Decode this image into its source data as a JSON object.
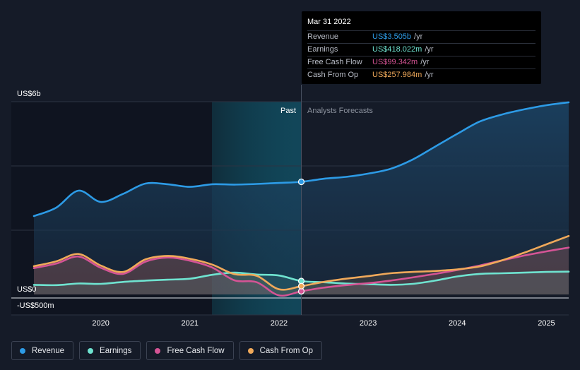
{
  "tooltip": {
    "date": "Mar 31 2022",
    "rows": [
      {
        "label": "Revenue",
        "value": "US$3.505b",
        "unit": "/yr",
        "color": "#2d9be6"
      },
      {
        "label": "Earnings",
        "value": "US$418.022m",
        "unit": "/yr",
        "color": "#6fe3d0"
      },
      {
        "label": "Free Cash Flow",
        "value": "US$99.342m",
        "unit": "/yr",
        "color": "#d55495"
      },
      {
        "label": "Cash From Op",
        "value": "US$257.984m",
        "unit": "/yr",
        "color": "#f0a95a"
      }
    ]
  },
  "legend": [
    {
      "label": "Revenue",
      "color": "#2d9be6"
    },
    {
      "label": "Earnings",
      "color": "#6fe3d0"
    },
    {
      "label": "Free Cash Flow",
      "color": "#d55495"
    },
    {
      "label": "Cash From Op",
      "color": "#f0a95a"
    }
  ],
  "chart_data": {
    "type": "line",
    "title": "",
    "y_top_label": "US$6b",
    "y_zero_label": "US$0",
    "y_bottom_label": "-US$500m",
    "ylim": [
      -500,
      6000
    ],
    "xlim": [
      2019.25,
      2025.25
    ],
    "past_label": "Past",
    "forecast_label": "Analysts Forecasts",
    "forecast_start": 2022.25,
    "highlight_start": 2021.25,
    "x_ticks": [
      "2020",
      "2021",
      "2022",
      "2023",
      "2024",
      "2025"
    ],
    "x_tick_values": [
      2020,
      2021,
      2022,
      2023,
      2024,
      2025
    ],
    "series": [
      {
        "name": "Revenue",
        "color": "#2d9be6",
        "fill": true,
        "marker_at": 2022.25,
        "marker_value": 3505,
        "x": [
          2019.25,
          2019.5,
          2019.75,
          2020.0,
          2020.25,
          2020.5,
          2020.75,
          2021.0,
          2021.25,
          2021.5,
          2021.75,
          2022.0,
          2022.25,
          2022.5,
          2022.75,
          2023.0,
          2023.25,
          2023.5,
          2023.75,
          2024.0,
          2024.25,
          2024.5,
          2024.75,
          2025.0,
          2025.25
        ],
        "values": [
          2440,
          2700,
          3230,
          2880,
          3130,
          3450,
          3430,
          3350,
          3430,
          3420,
          3440,
          3470,
          3505,
          3600,
          3660,
          3760,
          3910,
          4200,
          4600,
          5000,
          5380,
          5600,
          5760,
          5890,
          5980
        ]
      },
      {
        "name": "Earnings",
        "color": "#6fe3d0",
        "marker_at": 2022.25,
        "marker_value": 418,
        "x": [
          2019.25,
          2019.5,
          2019.75,
          2020.0,
          2020.25,
          2020.5,
          2020.75,
          2021.0,
          2021.25,
          2021.5,
          2021.75,
          2022.0,
          2022.25,
          2022.5,
          2022.75,
          2023.0,
          2023.25,
          2023.5,
          2023.75,
          2024.0,
          2024.25,
          2024.5,
          2024.75,
          2025.0,
          2025.25
        ],
        "values": [
          300,
          290,
          340,
          330,
          390,
          430,
          460,
          490,
          610,
          680,
          620,
          590,
          418,
          380,
          340,
          320,
          300,
          330,
          430,
          560,
          640,
          660,
          680,
          700,
          710
        ]
      },
      {
        "name": "Free Cash Flow",
        "color": "#d55495",
        "marker_at": 2022.25,
        "marker_value": 99,
        "x": [
          2019.25,
          2019.5,
          2019.75,
          2020.0,
          2020.25,
          2020.5,
          2020.75,
          2021.0,
          2021.25,
          2021.5,
          2021.75,
          2022.0,
          2022.25,
          2022.5,
          2022.75,
          2023.0,
          2023.25,
          2023.5,
          2023.75,
          2024.0,
          2024.25,
          2024.5,
          2024.75,
          2025.0,
          2025.25
        ],
        "values": [
          820,
          960,
          1180,
          830,
          640,
          1020,
          1150,
          1050,
          840,
          440,
          380,
          -30,
          99,
          210,
          290,
          350,
          430,
          530,
          640,
          760,
          900,
          1060,
          1210,
          1340,
          1460
        ]
      },
      {
        "name": "Cash From Op",
        "color": "#f0a95a",
        "marker_at": 2022.25,
        "marker_value": 258,
        "x": [
          2019.25,
          2019.5,
          2019.75,
          2020.0,
          2020.25,
          2020.5,
          2020.75,
          2021.0,
          2021.25,
          2021.5,
          2021.75,
          2022.0,
          2022.25,
          2022.5,
          2022.75,
          2023.0,
          2023.25,
          2023.5,
          2023.75,
          2024.0,
          2024.25,
          2024.5,
          2024.75,
          2025.0,
          2025.25
        ],
        "values": [
          880,
          1030,
          1260,
          900,
          700,
          1090,
          1200,
          1110,
          930,
          630,
          580,
          160,
          258,
          390,
          490,
          570,
          660,
          700,
          730,
          780,
          870,
          1060,
          1300,
          1560,
          1820
        ]
      }
    ]
  }
}
